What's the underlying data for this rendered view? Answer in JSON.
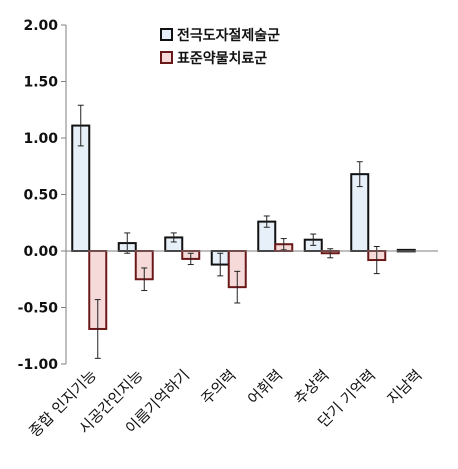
{
  "chart_data": {
    "type": "bar",
    "title": "",
    "xlabel": "",
    "ylabel": "",
    "ylim": [
      -1.0,
      2.0
    ],
    "yticks": [
      2.0,
      1.5,
      1.0,
      0.5,
      0.0,
      -0.5,
      -1.0
    ],
    "ytick_labels": [
      "2.00",
      "1.50",
      "1.00",
      "0.50",
      "0.00",
      "-0.50",
      "-1.00"
    ],
    "grid": false,
    "legend_position": "top-center",
    "categories": [
      "종합 인지기능",
      "시공간인지능",
      "이름기억하기",
      "주의력",
      "어휘력",
      "추상력",
      "단기 기억력",
      "지남력"
    ],
    "series": [
      {
        "name": "전극도자절제술군",
        "fill": "#e7f0f8",
        "stroke": "#111111",
        "values": [
          1.11,
          0.07,
          0.12,
          -0.12,
          0.26,
          0.1,
          0.68,
          0.01
        ],
        "errors": [
          0.18,
          0.09,
          0.04,
          0.1,
          0.05,
          0.05,
          0.11,
          0.0
        ]
      },
      {
        "name": "표준약물치료군",
        "fill": "#f6dada",
        "stroke": "#6b1818",
        "values": [
          -0.69,
          -0.25,
          -0.07,
          -0.32,
          0.06,
          -0.02,
          -0.08,
          null
        ],
        "errors": [
          0.26,
          0.1,
          0.05,
          0.14,
          0.05,
          0.04,
          0.12,
          null
        ]
      }
    ]
  }
}
